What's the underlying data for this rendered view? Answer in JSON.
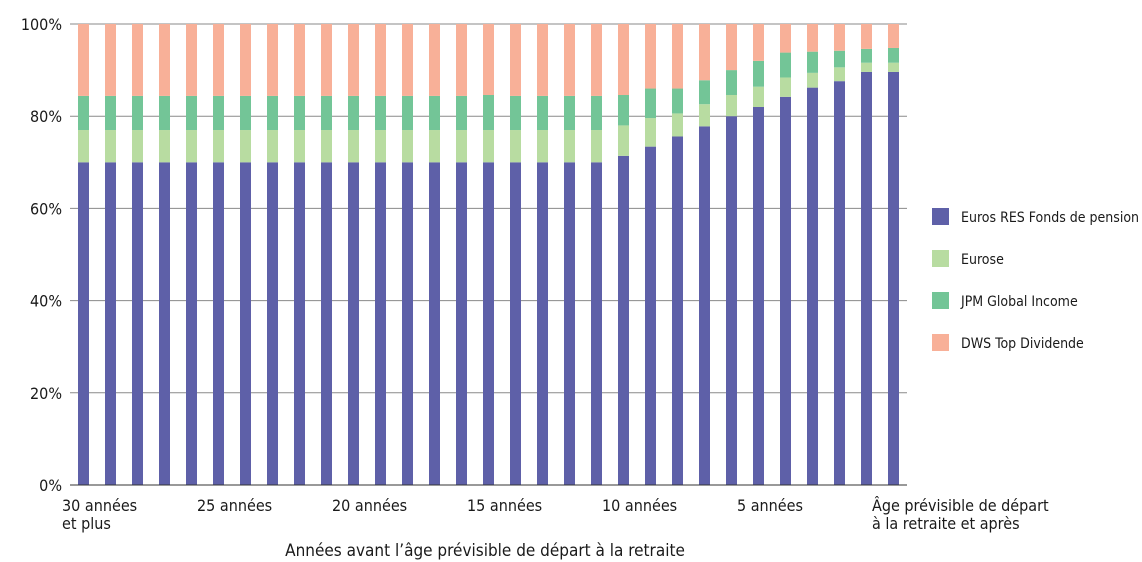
{
  "chart_data": {
    "type": "bar",
    "stacked": true,
    "title": "",
    "xlabel": "Années avant l’âge prévisible de départ à la retraite",
    "ylabel": "",
    "ylim": [
      0,
      100
    ],
    "yticks": [
      "0%",
      "20%",
      "40%",
      "60%",
      "80%",
      "100%"
    ],
    "grid": true,
    "legend_position": "right",
    "x_labels": [
      {
        "index": 0,
        "lines": [
          "30 années",
          "et plus"
        ]
      },
      {
        "index": 5,
        "lines": [
          "25 années"
        ]
      },
      {
        "index": 10,
        "lines": [
          "20 années"
        ]
      },
      {
        "index": 15,
        "lines": [
          "15 années"
        ]
      },
      {
        "index": 20,
        "lines": [
          "10 années"
        ]
      },
      {
        "index": 25,
        "lines": [
          "5 années"
        ]
      },
      {
        "index": 30,
        "lines": [
          "Âge prévisible de départ",
          "à la retraite et après"
        ]
      }
    ],
    "categories_count": 31,
    "series": [
      {
        "name": "Euros RES Fonds de pension",
        "color": "#5e60a8",
        "values": [
          70,
          70,
          70,
          70,
          70,
          70,
          70,
          70,
          70,
          70,
          70,
          70,
          70,
          70,
          70,
          70,
          70,
          70,
          70,
          70,
          71.4,
          73.4,
          75.6,
          77.8,
          80,
          82,
          84.2,
          86.2,
          87.6,
          89.6,
          89.6
        ]
      },
      {
        "name": "Eurose",
        "color": "#b8dca1",
        "values": [
          7,
          7,
          7,
          7,
          7,
          7,
          7,
          7,
          7,
          7,
          7,
          7,
          7,
          7,
          7,
          7,
          7,
          7,
          7,
          7,
          6.6,
          6.2,
          5,
          4.8,
          4.6,
          4.4,
          4.2,
          3.2,
          3,
          2,
          2
        ]
      },
      {
        "name": "JPM Global Income",
        "color": "#73c597",
        "values": [
          7.4,
          7.4,
          7.4,
          7.4,
          7.4,
          7.4,
          7.4,
          7.4,
          7.4,
          7.4,
          7.4,
          7.4,
          7.4,
          7.4,
          7.4,
          7.6,
          7.4,
          7.4,
          7.4,
          7.4,
          6.6,
          6.4,
          5.4,
          5.2,
          5.4,
          5.6,
          5.4,
          4.6,
          3.6,
          3,
          3.2
        ]
      },
      {
        "name": "DWS Top Dividende",
        "color": "#f8b098",
        "values": [
          15.6,
          15.6,
          15.6,
          15.6,
          15.6,
          15.6,
          15.6,
          15.6,
          15.6,
          15.6,
          15.6,
          15.6,
          15.6,
          15.6,
          15.6,
          15.4,
          15.6,
          15.6,
          15.6,
          15.6,
          15.4,
          14,
          14,
          12.2,
          10,
          8,
          6.2,
          6,
          5.8,
          5.4,
          5.2
        ]
      }
    ]
  }
}
